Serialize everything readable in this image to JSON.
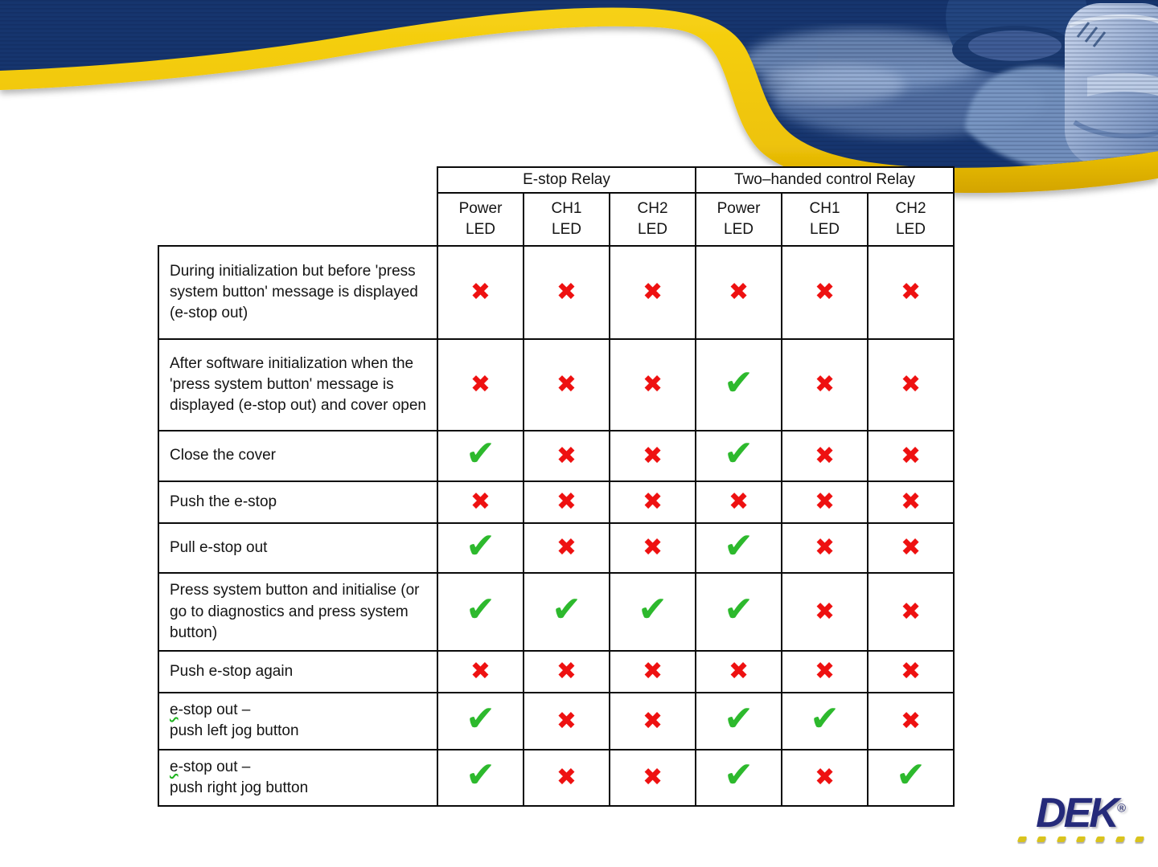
{
  "theme": {
    "navy": "#16356e",
    "gold": "#eec308",
    "check_green": "#2db92d",
    "cross_red": "#ee1111",
    "logo_navy": "#252a7a",
    "logo_dot_gold": "#d9c31d"
  },
  "table": {
    "group_headers": [
      {
        "label": "E-stop Relay",
        "colspan": 3
      },
      {
        "label": "Two–handed control Relay",
        "colspan": 3
      }
    ],
    "column_headers": [
      "Power\nLED",
      "CH1\nLED",
      "CH2\nLED",
      "Power\nLED",
      "CH1\nLED",
      "CH2\nLED"
    ],
    "symbols": {
      "check": "✔",
      "cross": "✖"
    },
    "rows": [
      {
        "label": "During initialization but before 'press system button' message is displayed (e-stop out)",
        "values": [
          "cross",
          "cross",
          "cross",
          "cross",
          "cross",
          "cross"
        ]
      },
      {
        "label": "After software initialization when the 'press system button' message is displayed (e-stop out) and cover open",
        "values": [
          "cross",
          "cross",
          "cross",
          "check",
          "cross",
          "cross"
        ]
      },
      {
        "label": "Close the cover",
        "values": [
          "check",
          "cross",
          "cross",
          "check",
          "cross",
          "cross"
        ]
      },
      {
        "label": "Push the e-stop",
        "values": [
          "cross",
          "cross",
          "cross",
          "cross",
          "cross",
          "cross"
        ]
      },
      {
        "label": "Pull e-stop out",
        "values": [
          "check",
          "cross",
          "cross",
          "check",
          "cross",
          "cross"
        ]
      },
      {
        "label": "Press system button and initialise (or go to diagnostics and press system button)",
        "values": [
          "check",
          "check",
          "check",
          "check",
          "cross",
          "cross"
        ]
      },
      {
        "label": "Push e-stop again",
        "values": [
          "cross",
          "cross",
          "cross",
          "cross",
          "cross",
          "cross"
        ]
      },
      {
        "label": "e-stop out –\npush left jog button",
        "misspell_first_char": true,
        "values": [
          "check",
          "cross",
          "cross",
          "check",
          "check",
          "cross"
        ]
      },
      {
        "label": "e-stop out –\npush right jog button",
        "misspell_first_char": true,
        "values": [
          "check",
          "cross",
          "cross",
          "check",
          "cross",
          "check"
        ]
      }
    ]
  },
  "logo": {
    "text": "DEK",
    "registered_mark": "®",
    "dot_count": 7
  }
}
